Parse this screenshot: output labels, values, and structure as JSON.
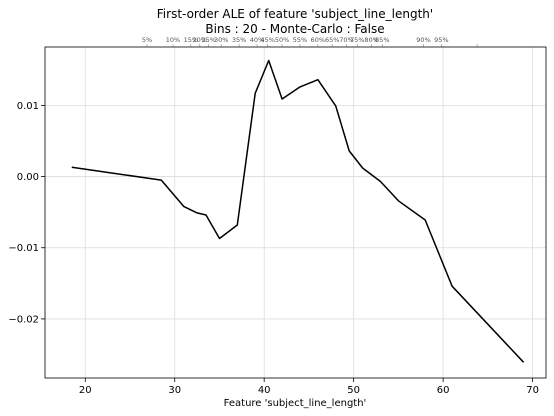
{
  "chart_data": {
    "type": "line",
    "title": "First-order ALE of feature 'subject_line_length'",
    "subtitle": "Bins : 20 - Monte-Carlo : False",
    "xlabel": "Feature 'subject_line_length'",
    "ylabel": "",
    "xlim": [
      15.5,
      71.5
    ],
    "ylim": [
      -0.0283,
      0.0182
    ],
    "xticks": [
      20,
      30,
      40,
      50,
      60,
      70
    ],
    "xtick_labels": [
      "20",
      "30",
      "40",
      "50",
      "60",
      "70"
    ],
    "yticks": [
      -0.02,
      -0.01,
      0.0,
      0.01
    ],
    "ytick_labels": [
      "−0.02",
      "−0.01",
      "0.00",
      "0.01"
    ],
    "grid": true,
    "series": [
      {
        "color": "#000000",
        "x": [
          18.5,
          28.5,
          31.0,
          32.5,
          33.5,
          35.0,
          37.0,
          39.0,
          40.5,
          42.0,
          44.0,
          46.0,
          48.0,
          49.5,
          51.0,
          53.0,
          55.0,
          58.0,
          61.0,
          69.0
        ],
        "y": [
          0.0013,
          -0.0005,
          -0.0042,
          -0.0051,
          -0.0054,
          -0.0087,
          -0.0068,
          0.0117,
          0.0163,
          0.0109,
          0.0126,
          0.0136,
          0.0099,
          0.0036,
          0.0012,
          -0.0007,
          -0.0034,
          -0.0061,
          -0.0154,
          -0.0261
        ]
      }
    ],
    "deciles": {
      "x": [
        26.9,
        29.8,
        31.8,
        32.8,
        33.8,
        35.2,
        37.2,
        39.2,
        40.4,
        42.0,
        44.0,
        46.0,
        47.6,
        49.2,
        50.4,
        52.0,
        53.2,
        57.8,
        59.8,
        63.8
      ],
      "labels": [
        "5%",
        "10%",
        "15%",
        "20%",
        "25%",
        "30%",
        "35%",
        "40%",
        "45%",
        "50%",
        "55%",
        "60%",
        "65%",
        "70%",
        "75%",
        "80%",
        "85%",
        "90%",
        "95%",
        ""
      ]
    }
  }
}
